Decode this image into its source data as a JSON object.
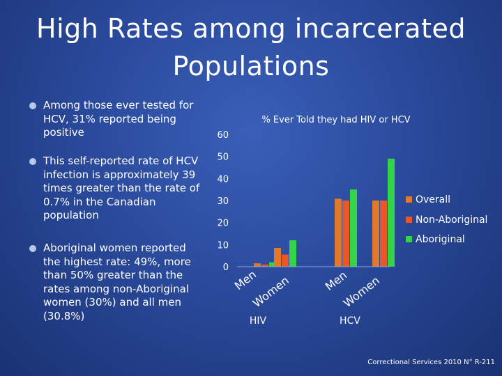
{
  "slide": {
    "title_line1": "High Rates among incarcerated",
    "title_line2": "Populations",
    "bullets": [
      {
        "lines": [
          "Among those ever tested for",
          "HCV, 31% reported being",
          "positive"
        ]
      },
      {
        "lines": [
          "This self-reported rate of HCV",
          "infection is approximately 39",
          "times greater than the rate of",
          "0.7% in the Canadian",
          "population"
        ]
      },
      {
        "lines": [
          "Aboriginal women reported",
          "the highest rate: 49%, more",
          "than 50% greater than the",
          "rates among non-Aboriginal",
          "women (30%) and all men",
          "(30.8%)"
        ]
      }
    ],
    "footer": "Correctional Services 2010 N° R-211"
  },
  "colors": {
    "overall": "#e07a2a",
    "non_aboriginal": "#e8572a",
    "aboriginal": "#33d44a",
    "bullet_dot": "#b8c8e8"
  },
  "chart_data": {
    "type": "bar",
    "title": "% Ever Told they had HIV or HCV",
    "groups": [
      "HIV",
      "HCV"
    ],
    "subcategories": [
      "Men",
      "Women"
    ],
    "series": [
      {
        "name": "Overall",
        "values": [
          [
            1.5,
            8.5
          ],
          [
            30.8,
            30
          ]
        ]
      },
      {
        "name": "Non-Aboriginal",
        "values": [
          [
            1,
            5.5
          ],
          [
            30,
            30
          ]
        ]
      },
      {
        "name": "Aboriginal",
        "values": [
          [
            2,
            12
          ],
          [
            35,
            49
          ]
        ]
      }
    ],
    "ylim": [
      0,
      60
    ],
    "yticks": [
      "0",
      "10",
      "20",
      "30",
      "40",
      "50",
      "60"
    ],
    "legend_position": "right"
  }
}
